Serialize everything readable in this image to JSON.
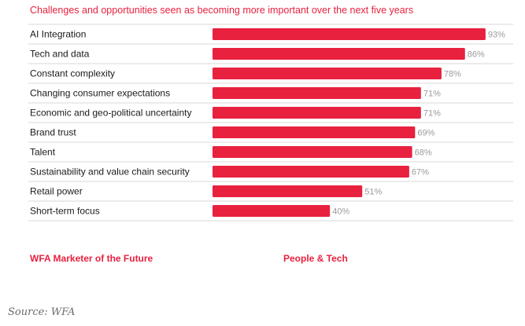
{
  "chart_data": {
    "type": "bar",
    "orientation": "horizontal",
    "title": "Challenges and opportunities seen as becoming more important over the next five years",
    "categories": [
      "AI Integration",
      "Tech and data",
      "Constant complexity",
      "Changing consumer expectations",
      "Economic and geo-political uncertainty",
      "Brand trust",
      "Talent",
      "Sustainability and value chain security",
      "Retail power",
      "Short-term focus"
    ],
    "values": [
      93,
      86,
      78,
      71,
      71,
      69,
      68,
      67,
      51,
      40
    ],
    "value_labels": [
      "93%",
      "86%",
      "78%",
      "71%",
      "71%",
      "69%",
      "68%",
      "67%",
      "51%",
      "40%"
    ],
    "xlim": [
      0,
      100
    ],
    "bar_color": "#e8213f",
    "grid": false,
    "legend": "none"
  },
  "footer": {
    "left": "WFA Marketer of the Future",
    "middle": "People & Tech"
  },
  "source": "Source: WFA"
}
